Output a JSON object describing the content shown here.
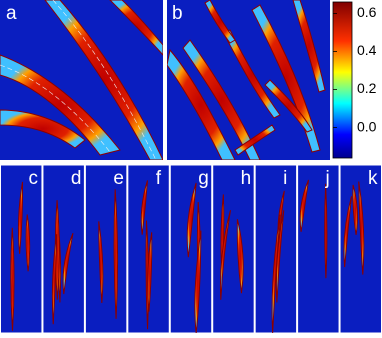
{
  "panels": [
    {
      "label": "a"
    },
    {
      "label": "b"
    },
    {
      "label": "c"
    },
    {
      "label": "d"
    },
    {
      "label": "e"
    },
    {
      "label": "f"
    },
    {
      "label": "g"
    },
    {
      "label": "h"
    },
    {
      "label": "i"
    },
    {
      "label": "j"
    },
    {
      "label": "k"
    }
  ],
  "colorbar": {
    "range": [
      -0.16,
      0.66
    ],
    "ticks": [
      {
        "value": 0.6,
        "label": "0.6"
      },
      {
        "value": 0.4,
        "label": "0.4"
      },
      {
        "value": 0.2,
        "label": "0.2"
      },
      {
        "value": 0,
        "label": "0.0"
      }
    ]
  }
}
